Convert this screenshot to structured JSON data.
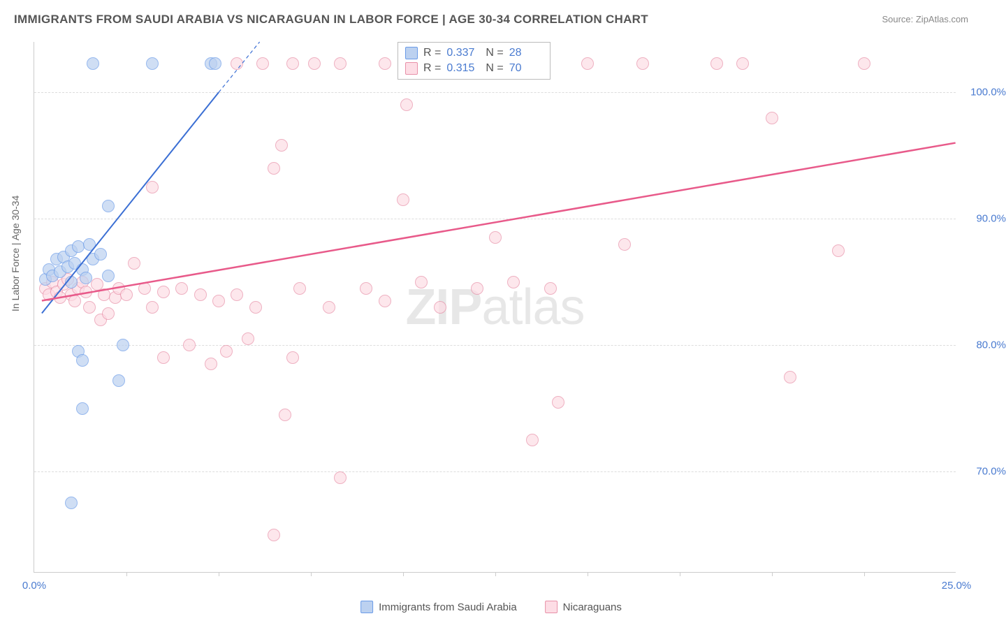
{
  "title": "IMMIGRANTS FROM SAUDI ARABIA VS NICARAGUAN IN LABOR FORCE | AGE 30-34 CORRELATION CHART",
  "source": "Source: ZipAtlas.com",
  "y_axis_title": "In Labor Force | Age 30-34",
  "watermark_a": "ZIP",
  "watermark_b": "atlas",
  "chart": {
    "type": "scatter",
    "xlim": [
      0,
      25
    ],
    "ylim": [
      62,
      104
    ],
    "x_ticks": [
      {
        "v": 0.0,
        "label": "0.0%"
      },
      {
        "v": 25.0,
        "label": "25.0%"
      }
    ],
    "x_minor_ticks": [
      2.5,
      5,
      7.5,
      10,
      12.5,
      15,
      17.5,
      20,
      22.5
    ],
    "y_ticks": [
      {
        "v": 70.0,
        "label": "70.0%"
      },
      {
        "v": 80.0,
        "label": "80.0%"
      },
      {
        "v": 90.0,
        "label": "90.0%"
      },
      {
        "v": 100.0,
        "label": "100.0%"
      }
    ],
    "background_color": "#ffffff",
    "grid_color": "#dddddd",
    "axis_color": "#cccccc",
    "tick_label_color": "#4a7bd0",
    "point_radius": 9,
    "series": [
      {
        "name": "Immigrants from Saudi Arabia",
        "color_fill": "#bcd1f0",
        "color_stroke": "#6a9be8",
        "r_label": "R =",
        "r_value": "0.337",
        "n_label": "N =",
        "n_value": "28",
        "trend": {
          "x1": 0.2,
          "y1": 82.5,
          "x2": 5.0,
          "y2": 100.0,
          "dash_x2": 10.0,
          "dash_y2": 118.0,
          "color": "#3b6fd4",
          "width": 2
        },
        "points": [
          [
            0.3,
            85.2
          ],
          [
            0.4,
            86.0
          ],
          [
            0.5,
            85.5
          ],
          [
            0.6,
            86.8
          ],
          [
            0.7,
            85.8
          ],
          [
            0.8,
            87.0
          ],
          [
            0.9,
            86.2
          ],
          [
            1.0,
            87.5
          ],
          [
            1.0,
            85.0
          ],
          [
            1.1,
            86.5
          ],
          [
            1.2,
            87.8
          ],
          [
            1.3,
            86.0
          ],
          [
            1.4,
            85.3
          ],
          [
            1.5,
            88.0
          ],
          [
            1.6,
            86.8
          ],
          [
            1.8,
            87.2
          ],
          [
            2.0,
            85.5
          ],
          [
            1.2,
            79.5
          ],
          [
            1.3,
            78.8
          ],
          [
            2.0,
            91.0
          ],
          [
            2.3,
            77.2
          ],
          [
            1.0,
            67.5
          ],
          [
            1.3,
            75.0
          ],
          [
            2.4,
            80.0
          ],
          [
            3.2,
            102.3
          ],
          [
            4.8,
            102.3
          ],
          [
            4.9,
            102.3
          ],
          [
            1.6,
            102.3
          ]
        ]
      },
      {
        "name": "Nicaraguans",
        "color_fill": "#fddde5",
        "color_stroke": "#e890a8",
        "r_label": "R =",
        "r_value": "0.315",
        "n_label": "N =",
        "n_value": "70",
        "trend": {
          "x1": 0.2,
          "y1": 83.5,
          "x2": 25.0,
          "y2": 96.0,
          "color": "#e85a8a",
          "width": 2.5
        },
        "points": [
          [
            0.3,
            84.5
          ],
          [
            0.4,
            84.0
          ],
          [
            0.5,
            85.0
          ],
          [
            0.6,
            84.2
          ],
          [
            0.7,
            83.8
          ],
          [
            0.8,
            84.8
          ],
          [
            0.9,
            85.2
          ],
          [
            1.0,
            84.0
          ],
          [
            1.1,
            83.5
          ],
          [
            1.2,
            84.5
          ],
          [
            1.3,
            85.0
          ],
          [
            1.4,
            84.2
          ],
          [
            1.5,
            83.0
          ],
          [
            1.7,
            84.8
          ],
          [
            1.8,
            82.0
          ],
          [
            1.9,
            84.0
          ],
          [
            2.0,
            82.5
          ],
          [
            2.2,
            83.8
          ],
          [
            2.3,
            84.5
          ],
          [
            2.5,
            84.0
          ],
          [
            2.7,
            86.5
          ],
          [
            3.0,
            84.5
          ],
          [
            3.2,
            83.0
          ],
          [
            3.5,
            84.2
          ],
          [
            3.2,
            92.5
          ],
          [
            3.5,
            79.0
          ],
          [
            4.0,
            84.5
          ],
          [
            4.2,
            80.0
          ],
          [
            4.5,
            84.0
          ],
          [
            4.8,
            78.5
          ],
          [
            5.0,
            83.5
          ],
          [
            5.2,
            79.5
          ],
          [
            5.5,
            84.0
          ],
          [
            5.8,
            80.5
          ],
          [
            6.0,
            83.0
          ],
          [
            6.5,
            94.0
          ],
          [
            6.7,
            95.8
          ],
          [
            7.0,
            79.0
          ],
          [
            7.2,
            84.5
          ],
          [
            6.5,
            65.0
          ],
          [
            6.8,
            74.5
          ],
          [
            8.0,
            83.0
          ],
          [
            8.3,
            69.5
          ],
          [
            9.0,
            84.5
          ],
          [
            9.5,
            83.5
          ],
          [
            10.0,
            91.5
          ],
          [
            10.5,
            85.0
          ],
          [
            11.0,
            83.0
          ],
          [
            12.0,
            84.5
          ],
          [
            12.5,
            88.5
          ],
          [
            13.0,
            85.0
          ],
          [
            13.5,
            72.5
          ],
          [
            14.0,
            84.5
          ],
          [
            5.5,
            102.3
          ],
          [
            6.2,
            102.3
          ],
          [
            7.0,
            102.3
          ],
          [
            7.6,
            102.3
          ],
          [
            8.3,
            102.3
          ],
          [
            9.5,
            102.3
          ],
          [
            10.1,
            99.0
          ],
          [
            14.2,
            75.5
          ],
          [
            15.0,
            102.3
          ],
          [
            16.5,
            102.3
          ],
          [
            16.0,
            88.0
          ],
          [
            18.5,
            102.3
          ],
          [
            19.2,
            102.3
          ],
          [
            20.0,
            98.0
          ],
          [
            20.5,
            77.5
          ],
          [
            21.8,
            87.5
          ],
          [
            22.5,
            102.3
          ]
        ]
      }
    ]
  },
  "legend": {
    "series_a": "Immigrants from Saudi Arabia",
    "series_b": "Nicaraguans"
  }
}
